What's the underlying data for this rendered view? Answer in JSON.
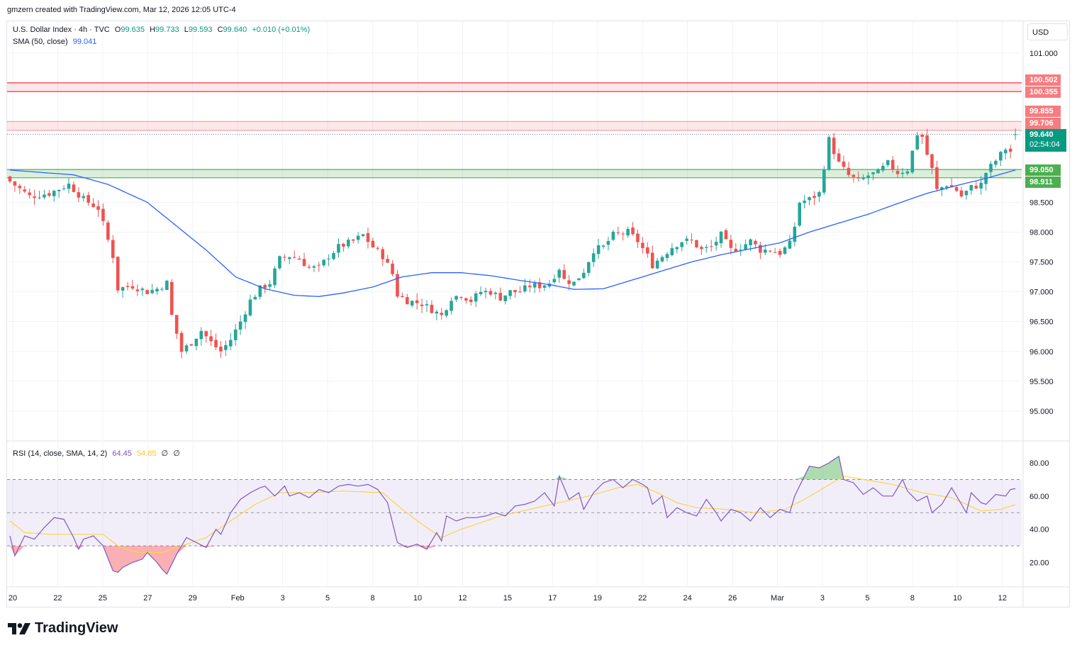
{
  "header": {
    "attribution": "gmzern created with TradingView.com, Mar 12, 2026 12:05 UTC-4"
  },
  "legend": {
    "symbol": "U.S. Dollar Index · 4h · TVC",
    "o_label": "O",
    "o_value": "99.635",
    "h_label": "H",
    "h_value": "99.733",
    "l_label": "L",
    "l_value": "99.593",
    "c_label": "C",
    "c_value": "99.640",
    "change": "+0.010 (+0.01%)",
    "sma_label": "SMA (50, close)",
    "sma_value": "99.041",
    "rsi_label": "RSI (14, close, SMA, 14, 2)",
    "rsi_value": "64.45",
    "rsi_sma_value": "54.85",
    "rsi_extra1": "∅",
    "rsi_extra2": "∅"
  },
  "currency_button": "USD",
  "price_tags": {
    "upper_zone_top": "100.502",
    "upper_zone_bottom": "100.355",
    "mid_zone_top": "99.855",
    "mid_zone_bottom": "99.706",
    "last_price": "99.640",
    "countdown": "02:54:04",
    "support_top": "99.050",
    "support_bottom": "98.911"
  },
  "colors": {
    "up": "#26a69a",
    "down": "#ef5350",
    "sma": "#2962ff",
    "rsi": "#7e57c2",
    "rsi_sma": "#f7d54a",
    "resistance": "#f23645",
    "support": "#4caf50"
  },
  "footer": {
    "brand": "TradingView"
  },
  "chart_data": {
    "type": "candlestick",
    "title": "U.S. Dollar Index · 4h · TVC",
    "timeframe": "4h",
    "ylim": [
      94.4,
      101.6
    ],
    "y_ticks": [
      "101.000",
      "98.500",
      "98.000",
      "97.500",
      "97.000",
      "96.500",
      "96.000",
      "95.500",
      "95.000"
    ],
    "x_ticks": [
      "20",
      "22",
      "25",
      "27",
      "29",
      "Feb",
      "3",
      "5",
      "8",
      "10",
      "12",
      "15",
      "17",
      "19",
      "22",
      "24",
      "26",
      "Mar",
      "3",
      "5",
      "8",
      "10",
      "12"
    ],
    "last": {
      "open": 99.635,
      "high": 99.733,
      "low": 99.593,
      "close": 99.64,
      "change": 0.01,
      "change_pct": 0.01
    },
    "zones": [
      {
        "name": "resistance-upper",
        "top": 100.502,
        "bottom": 100.355
      },
      {
        "name": "resistance-mid",
        "top": 99.855,
        "bottom": 99.706
      },
      {
        "name": "support",
        "top": 99.05,
        "bottom": 98.911
      }
    ],
    "close_path": [
      [
        0,
        98.85
      ],
      [
        4,
        98.6
      ],
      [
        8,
        98.65
      ],
      [
        12,
        98.8
      ],
      [
        15,
        98.55
      ],
      [
        18,
        98.4
      ],
      [
        21,
        97.6
      ],
      [
        22,
        97.05
      ],
      [
        25,
        97.1
      ],
      [
        28,
        97.0
      ],
      [
        30,
        97.05
      ],
      [
        32,
        97.15
      ],
      [
        33,
        96.6
      ],
      [
        35,
        96.0
      ],
      [
        37,
        96.15
      ],
      [
        39,
        96.35
      ],
      [
        41,
        96.15
      ],
      [
        43,
        96.0
      ],
      [
        45,
        96.2
      ],
      [
        47,
        96.5
      ],
      [
        49,
        96.85
      ],
      [
        51,
        97.05
      ],
      [
        53,
        97.15
      ],
      [
        55,
        97.55
      ],
      [
        57,
        97.6
      ],
      [
        59,
        97.55
      ],
      [
        61,
        97.4
      ],
      [
        63,
        97.4
      ],
      [
        65,
        97.6
      ],
      [
        67,
        97.75
      ],
      [
        70,
        97.85
      ],
      [
        72,
        97.95
      ],
      [
        74,
        97.75
      ],
      [
        76,
        97.6
      ],
      [
        78,
        97.3
      ],
      [
        79,
        96.95
      ],
      [
        81,
        96.85
      ],
      [
        84,
        96.8
      ],
      [
        86,
        96.7
      ],
      [
        88,
        96.6
      ],
      [
        90,
        96.9
      ],
      [
        92,
        96.95
      ],
      [
        94,
        96.85
      ],
      [
        96,
        97.0
      ],
      [
        98,
        97.0
      ],
      [
        100,
        96.9
      ],
      [
        102,
        97.0
      ],
      [
        104,
        97.0
      ],
      [
        106,
        97.1
      ],
      [
        108,
        97.1
      ],
      [
        110,
        97.15
      ],
      [
        112,
        97.4
      ],
      [
        113,
        97.2
      ],
      [
        115,
        97.15
      ],
      [
        117,
        97.35
      ],
      [
        119,
        97.7
      ],
      [
        121,
        97.75
      ],
      [
        123,
        97.95
      ],
      [
        126,
        98.0
      ],
      [
        128,
        97.85
      ],
      [
        130,
        97.6
      ],
      [
        131,
        97.45
      ],
      [
        133,
        97.6
      ],
      [
        135,
        97.75
      ],
      [
        137,
        97.85
      ],
      [
        139,
        97.85
      ],
      [
        141,
        97.7
      ],
      [
        143,
        97.75
      ],
      [
        145,
        97.95
      ],
      [
        147,
        97.7
      ],
      [
        149,
        97.75
      ],
      [
        151,
        97.85
      ],
      [
        153,
        97.7
      ],
      [
        155,
        97.7
      ],
      [
        157,
        97.65
      ],
      [
        159,
        97.8
      ],
      [
        160,
        98.1
      ],
      [
        161,
        98.5
      ],
      [
        163,
        98.55
      ],
      [
        165,
        98.65
      ],
      [
        166,
        99.1
      ],
      [
        167,
        99.55
      ],
      [
        169,
        99.15
      ],
      [
        171,
        98.95
      ],
      [
        173,
        98.85
      ],
      [
        175,
        98.95
      ],
      [
        177,
        99.0
      ],
      [
        179,
        99.15
      ],
      [
        181,
        99.0
      ],
      [
        183,
        99.05
      ],
      [
        185,
        99.65
      ],
      [
        186,
        99.6
      ],
      [
        187,
        99.3
      ],
      [
        188,
        99.05
      ],
      [
        189,
        98.7
      ],
      [
        191,
        98.8
      ],
      [
        193,
        98.7
      ],
      [
        194,
        98.6
      ],
      [
        196,
        98.75
      ],
      [
        198,
        98.8
      ],
      [
        199,
        99.0
      ],
      [
        201,
        99.2
      ],
      [
        203,
        99.4
      ],
      [
        204,
        99.35
      ],
      [
        205,
        99.64
      ]
    ],
    "sma50": [
      [
        0,
        99.04
      ],
      [
        13,
        98.96
      ],
      [
        20,
        98.8
      ],
      [
        28,
        98.5
      ],
      [
        34,
        98.1
      ],
      [
        40,
        97.7
      ],
      [
        46,
        97.25
      ],
      [
        52,
        97.05
      ],
      [
        58,
        96.94
      ],
      [
        63,
        96.92
      ],
      [
        68,
        96.98
      ],
      [
        74,
        97.08
      ],
      [
        80,
        97.25
      ],
      [
        86,
        97.32
      ],
      [
        92,
        97.32
      ],
      [
        98,
        97.27
      ],
      [
        104,
        97.19
      ],
      [
        110,
        97.12
      ],
      [
        115,
        97.04
      ],
      [
        121,
        97.05
      ],
      [
        127,
        97.2
      ],
      [
        133,
        97.35
      ],
      [
        139,
        97.5
      ],
      [
        145,
        97.62
      ],
      [
        151,
        97.72
      ],
      [
        157,
        97.82
      ],
      [
        163,
        98.0
      ],
      [
        169,
        98.15
      ],
      [
        175,
        98.3
      ],
      [
        181,
        98.48
      ],
      [
        187,
        98.65
      ],
      [
        193,
        98.78
      ],
      [
        199,
        98.9
      ],
      [
        205,
        99.04
      ]
    ],
    "rsi": {
      "ylim": [
        8,
        92
      ],
      "bands": [
        30,
        50,
        70
      ],
      "y_ticks": [
        "80.00",
        "60.00",
        "40.00",
        "20.00"
      ],
      "value": 64.45,
      "sma": 54.85,
      "series": [
        [
          0,
          36
        ],
        [
          1,
          24
        ],
        [
          3,
          36
        ],
        [
          5,
          34
        ],
        [
          7,
          41
        ],
        [
          9,
          47
        ],
        [
          11,
          46
        ],
        [
          13,
          35
        ],
        [
          14,
          28
        ],
        [
          15,
          34
        ],
        [
          17,
          36
        ],
        [
          19,
          30
        ],
        [
          21,
          15
        ],
        [
          22,
          14
        ],
        [
          23,
          17
        ],
        [
          25,
          20
        ],
        [
          27,
          22
        ],
        [
          28,
          26
        ],
        [
          30,
          20
        ],
        [
          31,
          16
        ],
        [
          32,
          13
        ],
        [
          34,
          25
        ],
        [
          36,
          35
        ],
        [
          38,
          32
        ],
        [
          40,
          29
        ],
        [
          42,
          40
        ],
        [
          43,
          37
        ],
        [
          45,
          50
        ],
        [
          47,
          58
        ],
        [
          49,
          62
        ],
        [
          51,
          65
        ],
        [
          52,
          66
        ],
        [
          54,
          60
        ],
        [
          56,
          66
        ],
        [
          57,
          60
        ],
        [
          59,
          62
        ],
        [
          61,
          59
        ],
        [
          63,
          64
        ],
        [
          65,
          62
        ],
        [
          67,
          66
        ],
        [
          69,
          67
        ],
        [
          71,
          66
        ],
        [
          73,
          67
        ],
        [
          75,
          64
        ],
        [
          77,
          56
        ],
        [
          79,
          32
        ],
        [
          81,
          29
        ],
        [
          83,
          31
        ],
        [
          85,
          28
        ],
        [
          87,
          38
        ],
        [
          88,
          33
        ],
        [
          89,
          48
        ],
        [
          91,
          45
        ],
        [
          93,
          47
        ],
        [
          95,
          47
        ],
        [
          97,
          48
        ],
        [
          99,
          50
        ],
        [
          101,
          48
        ],
        [
          103,
          54
        ],
        [
          105,
          55
        ],
        [
          107,
          57
        ],
        [
          109,
          62
        ],
        [
          111,
          54
        ],
        [
          112,
          72
        ],
        [
          114,
          58
        ],
        [
          116,
          62
        ],
        [
          117,
          52
        ],
        [
          119,
          62
        ],
        [
          121,
          68
        ],
        [
          123,
          70
        ],
        [
          125,
          65
        ],
        [
          127,
          70
        ],
        [
          129,
          67
        ],
        [
          130,
          65
        ],
        [
          131,
          55
        ],
        [
          133,
          60
        ],
        [
          134,
          47
        ],
        [
          136,
          53
        ],
        [
          138,
          50
        ],
        [
          140,
          48
        ],
        [
          142,
          58
        ],
        [
          144,
          50
        ],
        [
          145,
          45
        ],
        [
          147,
          52
        ],
        [
          149,
          50
        ],
        [
          151,
          45
        ],
        [
          153,
          53
        ],
        [
          155,
          47
        ],
        [
          157,
          52
        ],
        [
          159,
          50
        ],
        [
          160,
          60
        ],
        [
          162,
          72
        ],
        [
          163,
          78
        ],
        [
          165,
          77
        ],
        [
          167,
          80
        ],
        [
          169,
          84
        ],
        [
          170,
          70
        ],
        [
          172,
          68
        ],
        [
          174,
          61
        ],
        [
          176,
          65
        ],
        [
          178,
          60
        ],
        [
          180,
          60
        ],
        [
          182,
          70
        ],
        [
          183,
          63
        ],
        [
          185,
          57
        ],
        [
          187,
          60
        ],
        [
          188,
          50
        ],
        [
          190,
          55
        ],
        [
          192,
          65
        ],
        [
          194,
          55
        ],
        [
          195,
          50
        ],
        [
          196,
          62
        ],
        [
          198,
          56
        ],
        [
          199,
          55
        ],
        [
          201,
          61
        ],
        [
          203,
          60
        ],
        [
          204,
          64
        ],
        [
          205,
          64.45
        ]
      ],
      "sma_series": [
        [
          0,
          45
        ],
        [
          3,
          38
        ],
        [
          8,
          37
        ],
        [
          15,
          37
        ],
        [
          19,
          37
        ],
        [
          22,
          30
        ],
        [
          26,
          26
        ],
        [
          31,
          26
        ],
        [
          35,
          30
        ],
        [
          40,
          35
        ],
        [
          45,
          45
        ],
        [
          50,
          55
        ],
        [
          55,
          62
        ],
        [
          60,
          62
        ],
        [
          68,
          63
        ],
        [
          76,
          62
        ],
        [
          80,
          52
        ],
        [
          84,
          43
        ],
        [
          88,
          35
        ],
        [
          92,
          40
        ],
        [
          96,
          44
        ],
        [
          100,
          48
        ],
        [
          106,
          52
        ],
        [
          112,
          56
        ],
        [
          118,
          60
        ],
        [
          124,
          65
        ],
        [
          128,
          67
        ],
        [
          132,
          62
        ],
        [
          136,
          56
        ],
        [
          140,
          53
        ],
        [
          146,
          52
        ],
        [
          152,
          50
        ],
        [
          158,
          52
        ],
        [
          162,
          58
        ],
        [
          166,
          65
        ],
        [
          170,
          72
        ],
        [
          174,
          70
        ],
        [
          180,
          67
        ],
        [
          186,
          62
        ],
        [
          192,
          59
        ],
        [
          198,
          51
        ],
        [
          202,
          52
        ],
        [
          205,
          54.85
        ]
      ]
    }
  }
}
